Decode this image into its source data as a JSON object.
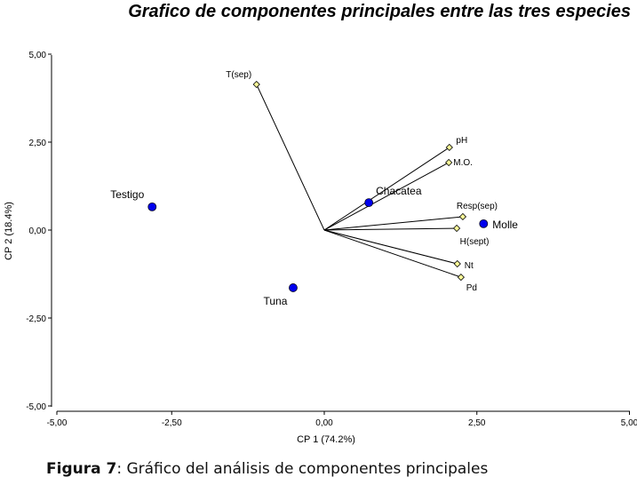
{
  "chart_data": {
    "type": "scatter",
    "subtype": "biplot",
    "title": "Grafico de componentes principales entre las tres especies",
    "xlabel": "CP 1 (74.2%)",
    "ylabel": "CP 2 (18.4%)",
    "xlim": [
      -5,
      5
    ],
    "ylim": [
      -5,
      5
    ],
    "xticks": [
      -5,
      -2.5,
      0,
      2.5,
      5
    ],
    "xtick_labels": [
      "-5,00",
      "-2,50",
      "0,00",
      "2,50",
      "5,00"
    ],
    "yticks": [
      5,
      2.5,
      0,
      -2.5,
      -5
    ],
    "ytick_labels": [
      "5,00",
      "2,50",
      "0,00",
      "-2,50",
      "-5,00"
    ],
    "grid": false,
    "points": [
      {
        "label": "Testigo",
        "x": -2.82,
        "y": 0.66
      },
      {
        "label": "Tuna",
        "x": -0.51,
        "y": -1.64
      },
      {
        "label": "Chacatea",
        "x": 0.73,
        "y": 0.78
      },
      {
        "label": "Molle",
        "x": 2.61,
        "y": 0.18
      }
    ],
    "vectors": [
      {
        "label": "T(sep)",
        "x": -1.11,
        "y": 4.14
      },
      {
        "label": "pH",
        "x": 2.05,
        "y": 2.35
      },
      {
        "label": "M.O.",
        "x": 2.04,
        "y": 1.92
      },
      {
        "label": "Resp(sep)",
        "x": 2.27,
        "y": 0.38
      },
      {
        "label": "H(sept)",
        "x": 2.17,
        "y": 0.05
      },
      {
        "label": "Nt",
        "x": 2.18,
        "y": -0.96
      },
      {
        "label": "Pd",
        "x": 2.24,
        "y": -1.34
      }
    ],
    "colors": {
      "point": "#0000ee",
      "vector_end": "#ffff99"
    }
  },
  "caption": {
    "figure": "Figura 7",
    "text": ": Gráfico del análisis de componentes principales"
  }
}
